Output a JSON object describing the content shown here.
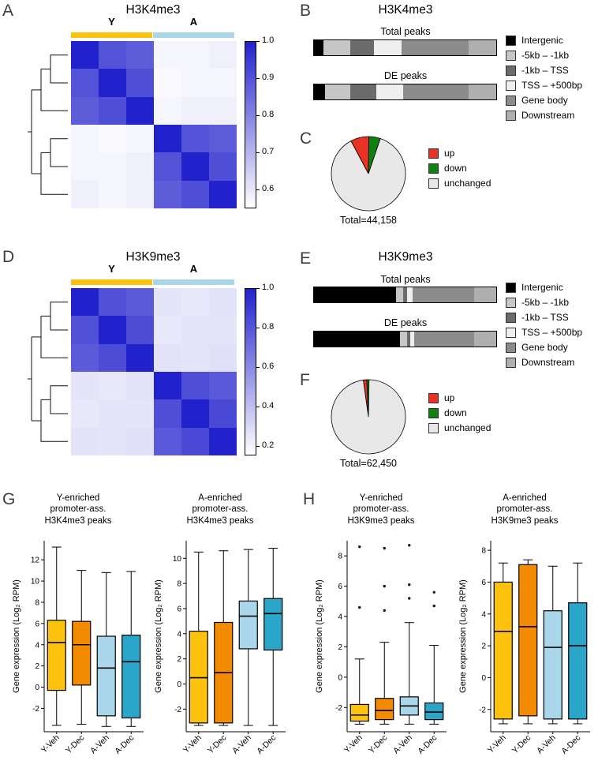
{
  "figure": {
    "panels": {
      "A": "A",
      "B": "B",
      "C": "C",
      "D": "D",
      "E": "E",
      "F": "F",
      "G": "G",
      "H": "H"
    }
  },
  "chart_data": [
    {
      "type": "heatmap",
      "title": "H3K4me3",
      "groups": [
        {
          "label": "Y",
          "color": "#FDC20E"
        },
        {
          "label": "A",
          "color": "#A9D6E9"
        }
      ],
      "matrix": [
        [
          1.0,
          0.9,
          0.88,
          0.57,
          0.57,
          0.58
        ],
        [
          0.9,
          1.0,
          0.91,
          0.56,
          0.57,
          0.57
        ],
        [
          0.88,
          0.91,
          1.0,
          0.57,
          0.58,
          0.58
        ],
        [
          0.57,
          0.56,
          0.57,
          1.0,
          0.9,
          0.88
        ],
        [
          0.57,
          0.57,
          0.58,
          0.9,
          1.0,
          0.91
        ],
        [
          0.58,
          0.57,
          0.58,
          0.88,
          0.91,
          1.0
        ]
      ],
      "vmin": 0.55,
      "vmax": 1.0,
      "color_low": "#FFFFFF",
      "color_high": "#2222CC",
      "colorbar_ticks": [
        {
          "label": "1.0",
          "value": 1.0
        },
        {
          "label": "0.9",
          "value": 0.9
        },
        {
          "label": "0.8",
          "value": 0.8
        },
        {
          "label": "0.7",
          "value": 0.7
        },
        {
          "label": "0.6",
          "value": 0.6
        }
      ]
    },
    {
      "type": "stacked_bar",
      "title": "H3K4me3",
      "segments": [
        {
          "label": "Intergenic",
          "color": "#000000"
        },
        {
          "label": "-5kb – -1kb",
          "color": "#C6C6C6"
        },
        {
          "label": "-1kb – TSS",
          "color": "#6B6B6B"
        },
        {
          "label": "TSS – +500bp",
          "color": "#EFEFEF"
        },
        {
          "label": "Gene body",
          "color": "#8C8C8C"
        },
        {
          "label": "Downstream",
          "color": "#AFAFAF"
        }
      ],
      "bars": [
        {
          "label": "Total peaks",
          "values": [
            5,
            15,
            13,
            15,
            37,
            15
          ]
        },
        {
          "label": "DE peaks",
          "values": [
            6,
            14,
            14,
            15,
            36,
            15
          ]
        }
      ]
    },
    {
      "type": "pie",
      "slices": [
        {
          "label": "up",
          "value": 8,
          "color": "#E93223"
        },
        {
          "label": "down",
          "value": 5,
          "color": "#108010"
        },
        {
          "label": "unchanged",
          "value": 87,
          "color": "#E8E8E8"
        }
      ],
      "start_deg": -28,
      "total_label": "Total=44,158"
    },
    {
      "type": "heatmap",
      "title": "H3K9me3",
      "groups": [
        {
          "label": "Y",
          "color": "#FDC20E"
        },
        {
          "label": "A",
          "color": "#A9D6E9"
        }
      ],
      "matrix": [
        [
          1.0,
          0.82,
          0.78,
          0.25,
          0.24,
          0.26
        ],
        [
          0.82,
          1.0,
          0.84,
          0.24,
          0.25,
          0.25
        ],
        [
          0.78,
          0.84,
          1.0,
          0.26,
          0.25,
          0.27
        ],
        [
          0.25,
          0.24,
          0.26,
          1.0,
          0.83,
          0.79
        ],
        [
          0.24,
          0.25,
          0.25,
          0.83,
          1.0,
          0.85
        ],
        [
          0.26,
          0.25,
          0.27,
          0.79,
          0.85,
          1.0
        ]
      ],
      "vmin": 0.15,
      "vmax": 1.0,
      "color_low": "#FFFFFF",
      "color_high": "#2222CC",
      "colorbar_ticks": [
        {
          "label": "1.0",
          "value": 1.0
        },
        {
          "label": "0.8",
          "value": 0.8
        },
        {
          "label": "0.6",
          "value": 0.6
        },
        {
          "label": "0.4",
          "value": 0.4
        },
        {
          "label": "0.2",
          "value": 0.2
        }
      ]
    },
    {
      "type": "stacked_bar",
      "title": "H3K9me3",
      "segments": [
        {
          "label": "Intergenic",
          "color": "#000000"
        },
        {
          "label": "-5kb – -1kb",
          "color": "#C6C6C6"
        },
        {
          "label": "-1kb – TSS",
          "color": "#6B6B6B"
        },
        {
          "label": "TSS – +500bp",
          "color": "#EFEFEF"
        },
        {
          "label": "Gene body",
          "color": "#8C8C8C"
        },
        {
          "label": "Downstream",
          "color": "#AFAFAF"
        }
      ],
      "bars": [
        {
          "label": "Total peaks",
          "values": [
            45,
            4,
            2,
            3,
            34,
            12
          ]
        },
        {
          "label": "DE peaks",
          "values": [
            47,
            4,
            2,
            2,
            33,
            12
          ]
        }
      ]
    },
    {
      "type": "pie",
      "slices": [
        {
          "label": "up",
          "value": 1.5,
          "color": "#E93223"
        },
        {
          "label": "down",
          "value": 1,
          "color": "#108010"
        },
        {
          "label": "unchanged",
          "value": 97.5,
          "color": "#E8E8E8"
        }
      ],
      "start_deg": -8,
      "total_label": "Total=62,450"
    },
    {
      "type": "box",
      "title_lines": [
        "Y-enriched",
        "promoter-ass.",
        "H3K4me3 peaks"
      ],
      "ylabel": "Gene expression (Log₂ RPM)",
      "yticks": [
        -2,
        0,
        2,
        4,
        6,
        8,
        10,
        12
      ],
      "ylim": [
        -4.2,
        13.8
      ],
      "categories": [
        "Y-Veh",
        "Y-Dec",
        "A-Veh",
        "A-Dec"
      ],
      "colors": [
        "#FDC20E",
        "#F28B02",
        "#A9D6E9",
        "#2BA6C9"
      ],
      "boxes": [
        {
          "low": -3.6,
          "q1": -0.3,
          "med": 4.2,
          "q3": 6.3,
          "high": 13.2
        },
        {
          "low": -3.5,
          "q1": 0.2,
          "med": 4.0,
          "q3": 6.2,
          "high": 11.0
        },
        {
          "low": -3.7,
          "q1": -2.7,
          "med": 1.8,
          "q3": 4.8,
          "high": 10.8
        },
        {
          "low": -3.7,
          "q1": -2.9,
          "med": 2.4,
          "q3": 4.9,
          "high": 10.9
        }
      ]
    },
    {
      "type": "box",
      "title_lines": [
        "A-enriched",
        "promoter-ass.",
        "H3K4me3 peaks"
      ],
      "ylabel": "Gene expression (Log₂ RPM)",
      "yticks": [
        -2,
        0,
        2,
        4,
        6,
        8,
        10
      ],
      "ylim": [
        -3.8,
        11.4
      ],
      "categories": [
        "Y-Veh",
        "Y-Dec",
        "A-Veh",
        "A-Dec"
      ],
      "colors": [
        "#FDC20E",
        "#F28B02",
        "#A9D6E9",
        "#2BA6C9"
      ],
      "boxes": [
        {
          "low": -3.3,
          "q1": -3.1,
          "med": 0.5,
          "q3": 4.2,
          "high": 10.5
        },
        {
          "low": -3.3,
          "q1": -3.1,
          "med": 0.9,
          "q3": 4.9,
          "high": 10.6
        },
        {
          "low": -3.3,
          "q1": 2.8,
          "med": 5.4,
          "q3": 6.6,
          "high": 10.7
        },
        {
          "low": -3.3,
          "q1": 2.7,
          "med": 5.6,
          "q3": 6.8,
          "high": 10.8
        }
      ]
    },
    {
      "type": "box",
      "title_lines": [
        "Y-enriched",
        "promoter-ass.",
        "H3K9me3 peaks"
      ],
      "ylabel": "Gene expression (Log₂ RPM)",
      "yticks": [
        -2,
        0,
        2,
        4,
        6,
        8
      ],
      "ylim": [
        -3.6,
        9.0
      ],
      "categories": [
        "Y-Veh",
        "Y-Dec",
        "A-Veh",
        "A-Dec"
      ],
      "colors": [
        "#FDC20E",
        "#F28B02",
        "#A9D6E9",
        "#2BA6C9"
      ],
      "boxes": [
        {
          "low": -3.1,
          "q1": -2.9,
          "med": -2.5,
          "q3": -1.8,
          "high": 1.2,
          "outliers": [
            4.6,
            8.6
          ]
        },
        {
          "low": -3.1,
          "q1": -2.8,
          "med": -2.2,
          "q3": -1.4,
          "high": 2.3,
          "outliers": [
            4.4,
            6.0,
            8.5
          ]
        },
        {
          "low": -3.1,
          "q1": -2.5,
          "med": -1.9,
          "q3": -1.3,
          "high": 3.6,
          "outliers": [
            5.2,
            6.1,
            8.7
          ]
        },
        {
          "low": -3.1,
          "q1": -2.8,
          "med": -2.3,
          "q3": -1.7,
          "high": 2.1,
          "outliers": [
            4.7,
            5.6
          ]
        }
      ]
    },
    {
      "type": "box",
      "title_lines": [
        "A-enriched",
        "promoter-ass.",
        "H3K9me3 peaks"
      ],
      "ylabel": "Gene expression (Log₂ RPM)",
      "yticks": [
        -2,
        0,
        2,
        4,
        6,
        8
      ],
      "ylim": [
        -3.4,
        8.6
      ],
      "categories": [
        "Y-Veh",
        "Y-Dec",
        "A-Veh",
        "A-Dec"
      ],
      "colors": [
        "#FDC20E",
        "#F28B02",
        "#A9D6E9",
        "#2BA6C9"
      ],
      "boxes": [
        {
          "low": -2.9,
          "q1": -2.6,
          "med": 2.9,
          "q3": 6.0,
          "high": 7.2
        },
        {
          "low": -2.9,
          "q1": -2.4,
          "med": 3.2,
          "q3": 7.1,
          "high": 7.4
        },
        {
          "low": -2.9,
          "q1": -2.6,
          "med": 1.9,
          "q3": 4.2,
          "high": 7.0
        },
        {
          "low": -2.9,
          "q1": -2.6,
          "med": 2.0,
          "q3": 4.7,
          "high": 7.2
        }
      ]
    }
  ]
}
